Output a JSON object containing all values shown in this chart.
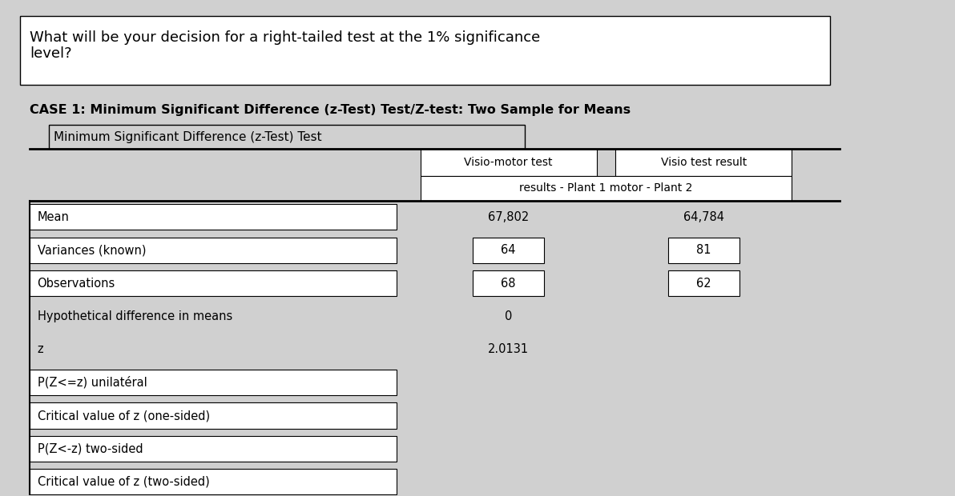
{
  "bg_color": "#d0d0d0",
  "title_box_text": "What will be your decision for a right-tailed test at the 1% significance\nlevel?",
  "case_title": "CASE 1: Minimum Significant Difference (z-Test) Test/Z-test: Two Sample for Means",
  "sub_title": "Minimum Significant Difference (z-Test) Test",
  "col_header1": "Visio-motor test",
  "col_header2": "Visio test result",
  "col_subheader": "results - Plant 1 motor - Plant 2",
  "rows": [
    {
      "label": "Mean",
      "val1": "67,802",
      "val2": "64,784",
      "has_box_label": true,
      "has_box_val1": false,
      "has_box_val2": false
    },
    {
      "label": "Variances (known)",
      "val1": "64",
      "val2": "81",
      "has_box_label": true,
      "has_box_val1": true,
      "has_box_val2": true
    },
    {
      "label": "Observations",
      "val1": "68",
      "val2": "62",
      "has_box_label": true,
      "has_box_val1": true,
      "has_box_val2": true
    },
    {
      "label": "Hypothetical difference in means",
      "val1": "0",
      "val2": "",
      "has_box_label": false,
      "has_box_val1": false,
      "has_box_val2": false
    },
    {
      "label": "z",
      "val1": "2.0131",
      "val2": "",
      "has_box_label": false,
      "has_box_val1": false,
      "has_box_val2": false
    },
    {
      "label": "P(Z<=z) unilatéral",
      "val1": "",
      "val2": "",
      "has_box_label": true,
      "has_box_val1": false,
      "has_box_val2": false
    },
    {
      "label": "Critical value of z (one-sided)",
      "val1": "",
      "val2": "",
      "has_box_label": true,
      "has_box_val1": false,
      "has_box_val2": false
    },
    {
      "label": "P(Z<-z) two-sided",
      "val1": "",
      "val2": "",
      "has_box_label": true,
      "has_box_val1": false,
      "has_box_val2": false
    },
    {
      "label": "Critical value of z (two-sided)",
      "val1": "",
      "val2": "",
      "has_box_label": true,
      "has_box_val1": false,
      "has_box_val2": false
    }
  ]
}
